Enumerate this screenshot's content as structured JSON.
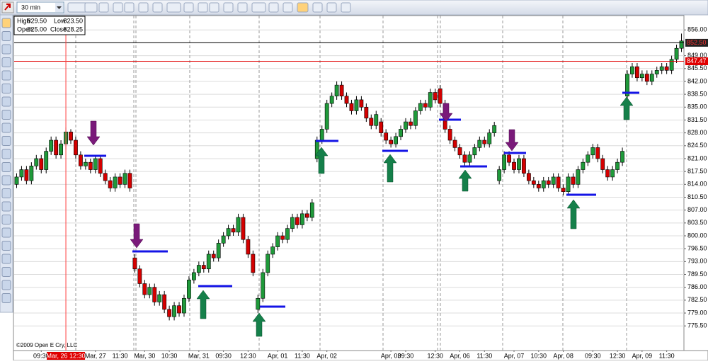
{
  "toolbar": {
    "timeframe": "30 min"
  },
  "info_box": {
    "high_label": "High",
    "high": "829.50",
    "low_label": "Low",
    "low": "823.50",
    "open_label": "Open",
    "open": "825.00",
    "close_label": "Close",
    "close": "828.25"
  },
  "footer": "©2009 Open E Cry, LLC",
  "chart_data": {
    "type": "candlestick",
    "categories": [
      null,
      null,
      null,
      null,
      null,
      "09:30",
      null,
      null,
      null,
      null,
      "Mar, 26 12:30",
      null,
      null,
      null,
      null,
      null,
      "Mar, 27",
      null,
      null,
      null,
      null,
      "11:30",
      null,
      null,
      null,
      null,
      "Mar, 30",
      null,
      null,
      null,
      null,
      "10:30",
      null,
      null,
      null,
      null,
      null,
      "Mar, 31",
      null,
      null,
      null,
      null,
      "09:30",
      null,
      null,
      null,
      null,
      "12:30",
      null,
      null,
      null,
      null,
      null,
      "Apr, 01",
      null,
      null,
      null,
      null,
      "11:30",
      null,
      null,
      null,
      null,
      "Apr, 02",
      null,
      null,
      null,
      null,
      null,
      null,
      null,
      null,
      null,
      null,
      null,
      null,
      "Apr, 03",
      null,
      null,
      "09:30",
      null,
      null,
      null,
      null,
      null,
      "12:30",
      null,
      null,
      null,
      null,
      "Apr, 06",
      null,
      null,
      null,
      null,
      "11:30",
      null,
      null,
      null,
      null,
      null,
      "Apr, 07",
      null,
      null,
      null,
      null,
      "10:30",
      null,
      null,
      null,
      null,
      "Apr, 08",
      null,
      null,
      null,
      null,
      null,
      "09:30",
      null,
      null,
      null,
      null,
      "12:30",
      null,
      null,
      null,
      null,
      "Apr, 09",
      null,
      null,
      null,
      null,
      "11:30",
      null,
      null,
      null
    ],
    "open": [
      814,
      816,
      818,
      815,
      819,
      821,
      818,
      823,
      826,
      822,
      825,
      828.25,
      826,
      822,
      819,
      820,
      818,
      821,
      817,
      815,
      813,
      816,
      814,
      817,
      794,
      791,
      787,
      784,
      786,
      782,
      784,
      780,
      778,
      781,
      779,
      783,
      788,
      790,
      792,
      791,
      795,
      794,
      798,
      800,
      802,
      801,
      805,
      799,
      795,
      780,
      783,
      790,
      795,
      797,
      800,
      799,
      802,
      805,
      803,
      806,
      805,
      821,
      826,
      829,
      836,
      838,
      841,
      838,
      836,
      834,
      837,
      835,
      832,
      830,
      831,
      828,
      826,
      825,
      827,
      829,
      831,
      830,
      834,
      836,
      835,
      839,
      840,
      836,
      829,
      826,
      824,
      822,
      820,
      822,
      824,
      826,
      825,
      828,
      815,
      818,
      822,
      820,
      818,
      821,
      817,
      815,
      814,
      813,
      815,
      814,
      816,
      813,
      812,
      816,
      814,
      818,
      820,
      822,
      824,
      821,
      818,
      816,
      818,
      820,
      838,
      844,
      846,
      843,
      844,
      842,
      844,
      845,
      846,
      845,
      848,
      851
    ],
    "high": [
      817,
      819,
      819,
      820,
      822,
      822,
      824,
      827,
      827,
      826,
      829.5,
      829,
      827,
      823,
      821,
      821,
      822,
      822,
      818,
      816,
      817,
      817,
      818,
      818,
      795,
      792,
      788,
      787,
      787,
      785,
      785,
      781,
      782,
      782,
      784,
      789,
      791,
      793,
      793,
      796,
      796,
      799,
      801,
      803,
      803,
      806,
      806,
      800,
      796,
      784,
      791,
      796,
      798,
      801,
      801,
      803,
      806,
      806,
      807,
      807,
      810,
      827,
      830,
      837,
      839,
      842,
      842,
      839,
      837,
      838,
      838,
      836,
      833,
      834,
      832,
      829,
      827,
      828,
      830,
      832,
      832,
      835,
      837,
      837,
      840,
      840,
      841,
      837,
      830,
      827,
      825,
      823,
      823,
      825,
      827,
      827,
      829,
      831,
      819,
      823,
      823,
      821,
      822,
      822,
      818,
      816,
      815,
      816,
      816,
      817,
      817,
      814,
      817,
      817,
      819,
      821,
      823,
      825,
      825,
      822,
      819,
      819,
      821,
      824,
      845,
      847,
      847,
      845,
      845,
      845,
      846,
      847,
      847,
      849,
      852,
      855
    ],
    "low": [
      813,
      815,
      814,
      814,
      818,
      817,
      817,
      822,
      821,
      821,
      823.5,
      825,
      821,
      818,
      818,
      817,
      817,
      816,
      814,
      812,
      812,
      813,
      813,
      812,
      790,
      786,
      783,
      783,
      781,
      781,
      779,
      777,
      777,
      778,
      778,
      782,
      787,
      789,
      790,
      790,
      793,
      793,
      797,
      799,
      800,
      800,
      798,
      794,
      789,
      779,
      782,
      789,
      794,
      796,
      798,
      798,
      801,
      802,
      802,
      804,
      804,
      820,
      825,
      828,
      835,
      837,
      837,
      835,
      833,
      833,
      834,
      831,
      829,
      829,
      827,
      825,
      824,
      824,
      826,
      828,
      829,
      829,
      833,
      834,
      834,
      836,
      835,
      828,
      825,
      823,
      821,
      819,
      819,
      821,
      823,
      824,
      824,
      827,
      814,
      817,
      819,
      817,
      817,
      816,
      814,
      813,
      812,
      812,
      813,
      813,
      812,
      811,
      811,
      813,
      813,
      817,
      819,
      821,
      820,
      817,
      815,
      815,
      817,
      819,
      837,
      843,
      842,
      842,
      841,
      841,
      843,
      844,
      844,
      844,
      847,
      850
    ],
    "close": [
      816,
      818,
      815,
      819,
      821,
      818,
      823,
      826,
      822,
      825,
      828.25,
      826,
      822,
      819,
      820,
      818,
      821,
      817,
      815,
      813,
      816,
      814,
      817,
      813,
      791,
      787,
      784,
      786,
      782,
      784,
      780,
      778,
      781,
      779,
      783,
      788,
      790,
      792,
      791,
      795,
      794,
      798,
      800,
      802,
      801,
      805,
      799,
      795,
      790,
      783,
      790,
      795,
      797,
      800,
      799,
      802,
      805,
      803,
      806,
      805,
      809,
      826,
      829,
      836,
      838,
      841,
      838,
      836,
      834,
      837,
      835,
      832,
      830,
      833,
      828,
      826,
      825,
      827,
      829,
      831,
      830,
      834,
      836,
      835,
      839,
      837,
      836,
      829,
      826,
      824,
      822,
      820,
      822,
      824,
      826,
      825,
      828,
      830,
      818,
      822,
      820,
      818,
      821,
      817,
      815,
      814,
      813,
      815,
      814,
      816,
      813,
      812,
      816,
      814,
      818,
      820,
      822,
      824,
      821,
      818,
      816,
      818,
      820,
      823,
      844,
      846,
      843,
      844,
      842,
      844,
      845,
      846,
      845,
      848,
      851,
      853
    ],
    "up_color": "#1f9a3a",
    "down_color": "#d40000",
    "ylim": [
      768.8,
      859.9
    ],
    "yticks": [
      {
        "value": 856,
        "label": "856.00"
      },
      {
        "value": 849,
        "label": "849.00"
      },
      {
        "value": 845.5,
        "label": "845.50"
      },
      {
        "value": 842,
        "label": "842.00"
      },
      {
        "value": 838.5,
        "label": "838.50"
      },
      {
        "value": 835,
        "label": "835.00"
      },
      {
        "value": 831.5,
        "label": "831.50"
      },
      {
        "value": 828,
        "label": "828.00"
      },
      {
        "value": 824.5,
        "label": "824.50"
      },
      {
        "value": 821,
        "label": "821.00"
      },
      {
        "value": 817.5,
        "label": "817.50"
      },
      {
        "value": 814,
        "label": "814.00"
      },
      {
        "value": 810.5,
        "label": "810.50"
      },
      {
        "value": 807,
        "label": "807.00"
      },
      {
        "value": 803.5,
        "label": "803.50"
      },
      {
        "value": 800,
        "label": "800.00"
      },
      {
        "value": 796.5,
        "label": "796.50"
      },
      {
        "value": 793,
        "label": "793.00"
      },
      {
        "value": 789.5,
        "label": "789.50"
      },
      {
        "value": 786,
        "label": "786.00"
      },
      {
        "value": 782.5,
        "label": "782.50"
      },
      {
        "value": 779,
        "label": "779.00"
      },
      {
        "value": 775.5,
        "label": "775.50"
      }
    ],
    "grid": true,
    "price_lines": [
      {
        "value": 852.5,
        "label": "852.50",
        "color": "#000000",
        "label_bg": "#222222",
        "label_color": "#ff3030"
      },
      {
        "value": 847.47,
        "label": "847.47",
        "color": "#e00000",
        "label_bg": "#e00000",
        "label_color": "#ffffff"
      }
    ]
  }
}
